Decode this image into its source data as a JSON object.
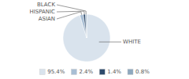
{
  "chart_data": {
    "type": "pie",
    "categories": [
      "WHITE",
      "ASIAN",
      "HISPANIC",
      "BLACK"
    ],
    "values": [
      95.4,
      2.4,
      1.4,
      0.8
    ],
    "value_labels": [
      "95.4%",
      "2.4%",
      "1.4%",
      "0.8%"
    ],
    "colors": [
      "#d9e3ed",
      "#a8bed4",
      "#2e4a6b",
      "#8fa8be"
    ],
    "legend": "bottom"
  }
}
